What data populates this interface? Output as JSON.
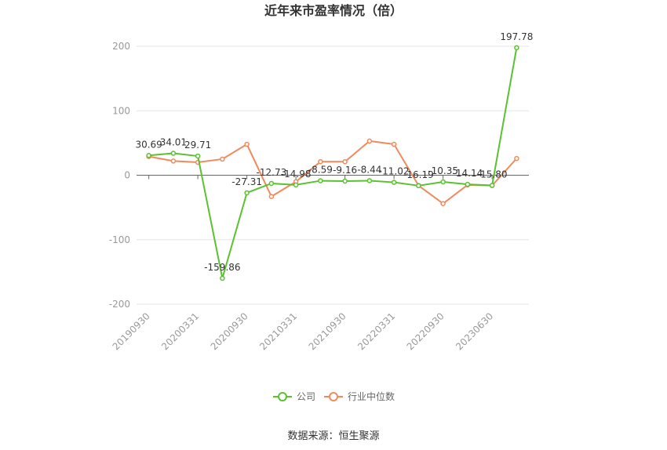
{
  "chart_data": {
    "type": "line",
    "title": "近年来市盈率情况（倍）",
    "source": "数据来源：恒生聚源",
    "y_axis": {
      "min": -200,
      "max": 200,
      "ticks": [
        -200,
        -100,
        0,
        100,
        200
      ]
    },
    "x_tick_labels": [
      "20190930",
      "20200331",
      "20200930",
      "20210331",
      "20210930",
      "20220331",
      "20220930",
      "20230630"
    ],
    "x_tick_indices": [
      0,
      2,
      4,
      6,
      8,
      10,
      12,
      14
    ],
    "point_count": 16,
    "series": [
      {
        "name": "公司",
        "color": "#5ac12f",
        "values": [
          30.69,
          34.01,
          29.71,
          -159.86,
          -27.31,
          -12.73,
          -14.98,
          -8.59,
          -9.16,
          -8.44,
          -11.02,
          -16.19,
          -10.35,
          -14.14,
          -15.8,
          197.78
        ],
        "labels": [
          "30.69",
          "34.01",
          "29.71",
          "-159.86",
          "-27.31",
          "-12.73",
          "-14.98",
          "-8.59",
          "-9.16",
          "-8.44",
          "-11.02",
          "-16.19",
          "-10.35",
          "-14.14",
          "-15.80",
          "197.78"
        ]
      },
      {
        "name": "行业中位数",
        "color": "#f08a5d",
        "values": [
          29,
          22,
          20,
          25,
          48,
          -33,
          -10,
          21,
          21,
          53,
          48,
          -16,
          -44,
          -15,
          -16,
          26
        ]
      }
    ]
  }
}
